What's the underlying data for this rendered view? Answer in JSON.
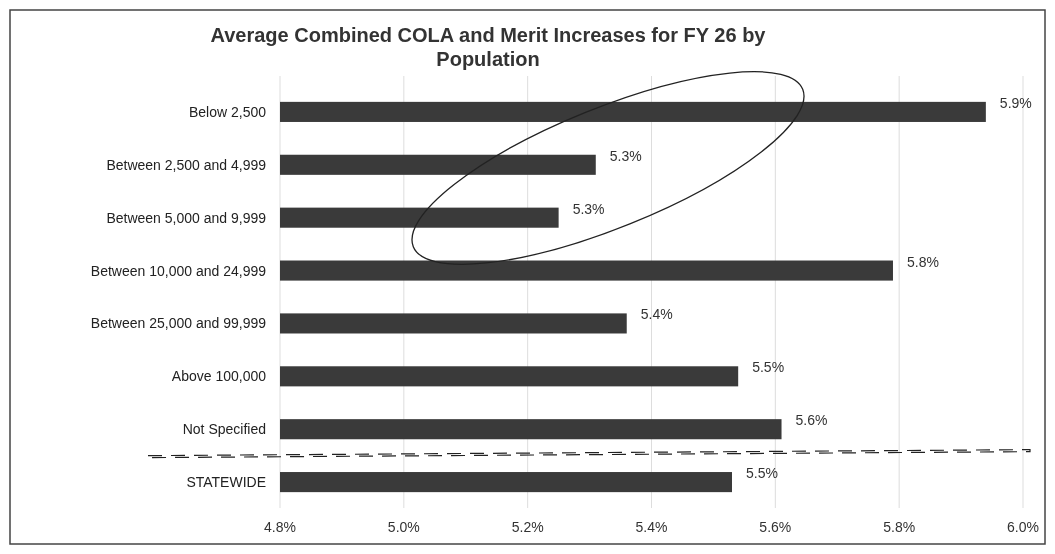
{
  "chart_data": {
    "type": "bar",
    "orientation": "horizontal",
    "title": "Average Combined COLA and Merit Increases for FY 26 by Population",
    "categories": [
      "Below 2,500",
      "Between 2,500 and 4,999",
      "Between 5,000 and 9,999",
      "Between 10,000 and 24,999",
      "Between 25,000 and 99,999",
      "Above 100,000",
      "Not Specified",
      "STATEWIDE"
    ],
    "values": [
      5.94,
      5.31,
      5.25,
      5.79,
      5.36,
      5.54,
      5.61,
      5.53
    ],
    "value_labels": [
      "5.9%",
      "5.3%",
      "5.3%",
      "5.8%",
      "5.4%",
      "5.5%",
      "5.6%",
      "5.5%"
    ],
    "color": "#3a3a3a",
    "xlim": [
      4.8,
      6.0
    ],
    "xticks": [
      {
        "value": 4.8,
        "label": "4.8%"
      },
      {
        "value": 5.0,
        "label": "5.0%"
      },
      {
        "value": 5.2,
        "label": "5.2%"
      },
      {
        "value": 5.4,
        "label": "5.4%"
      },
      {
        "value": 5.6,
        "label": "5.6%"
      },
      {
        "value": 5.8,
        "label": "5.8%"
      },
      {
        "value": 6.0,
        "label": "6.0%"
      }
    ],
    "grid": "x"
  }
}
